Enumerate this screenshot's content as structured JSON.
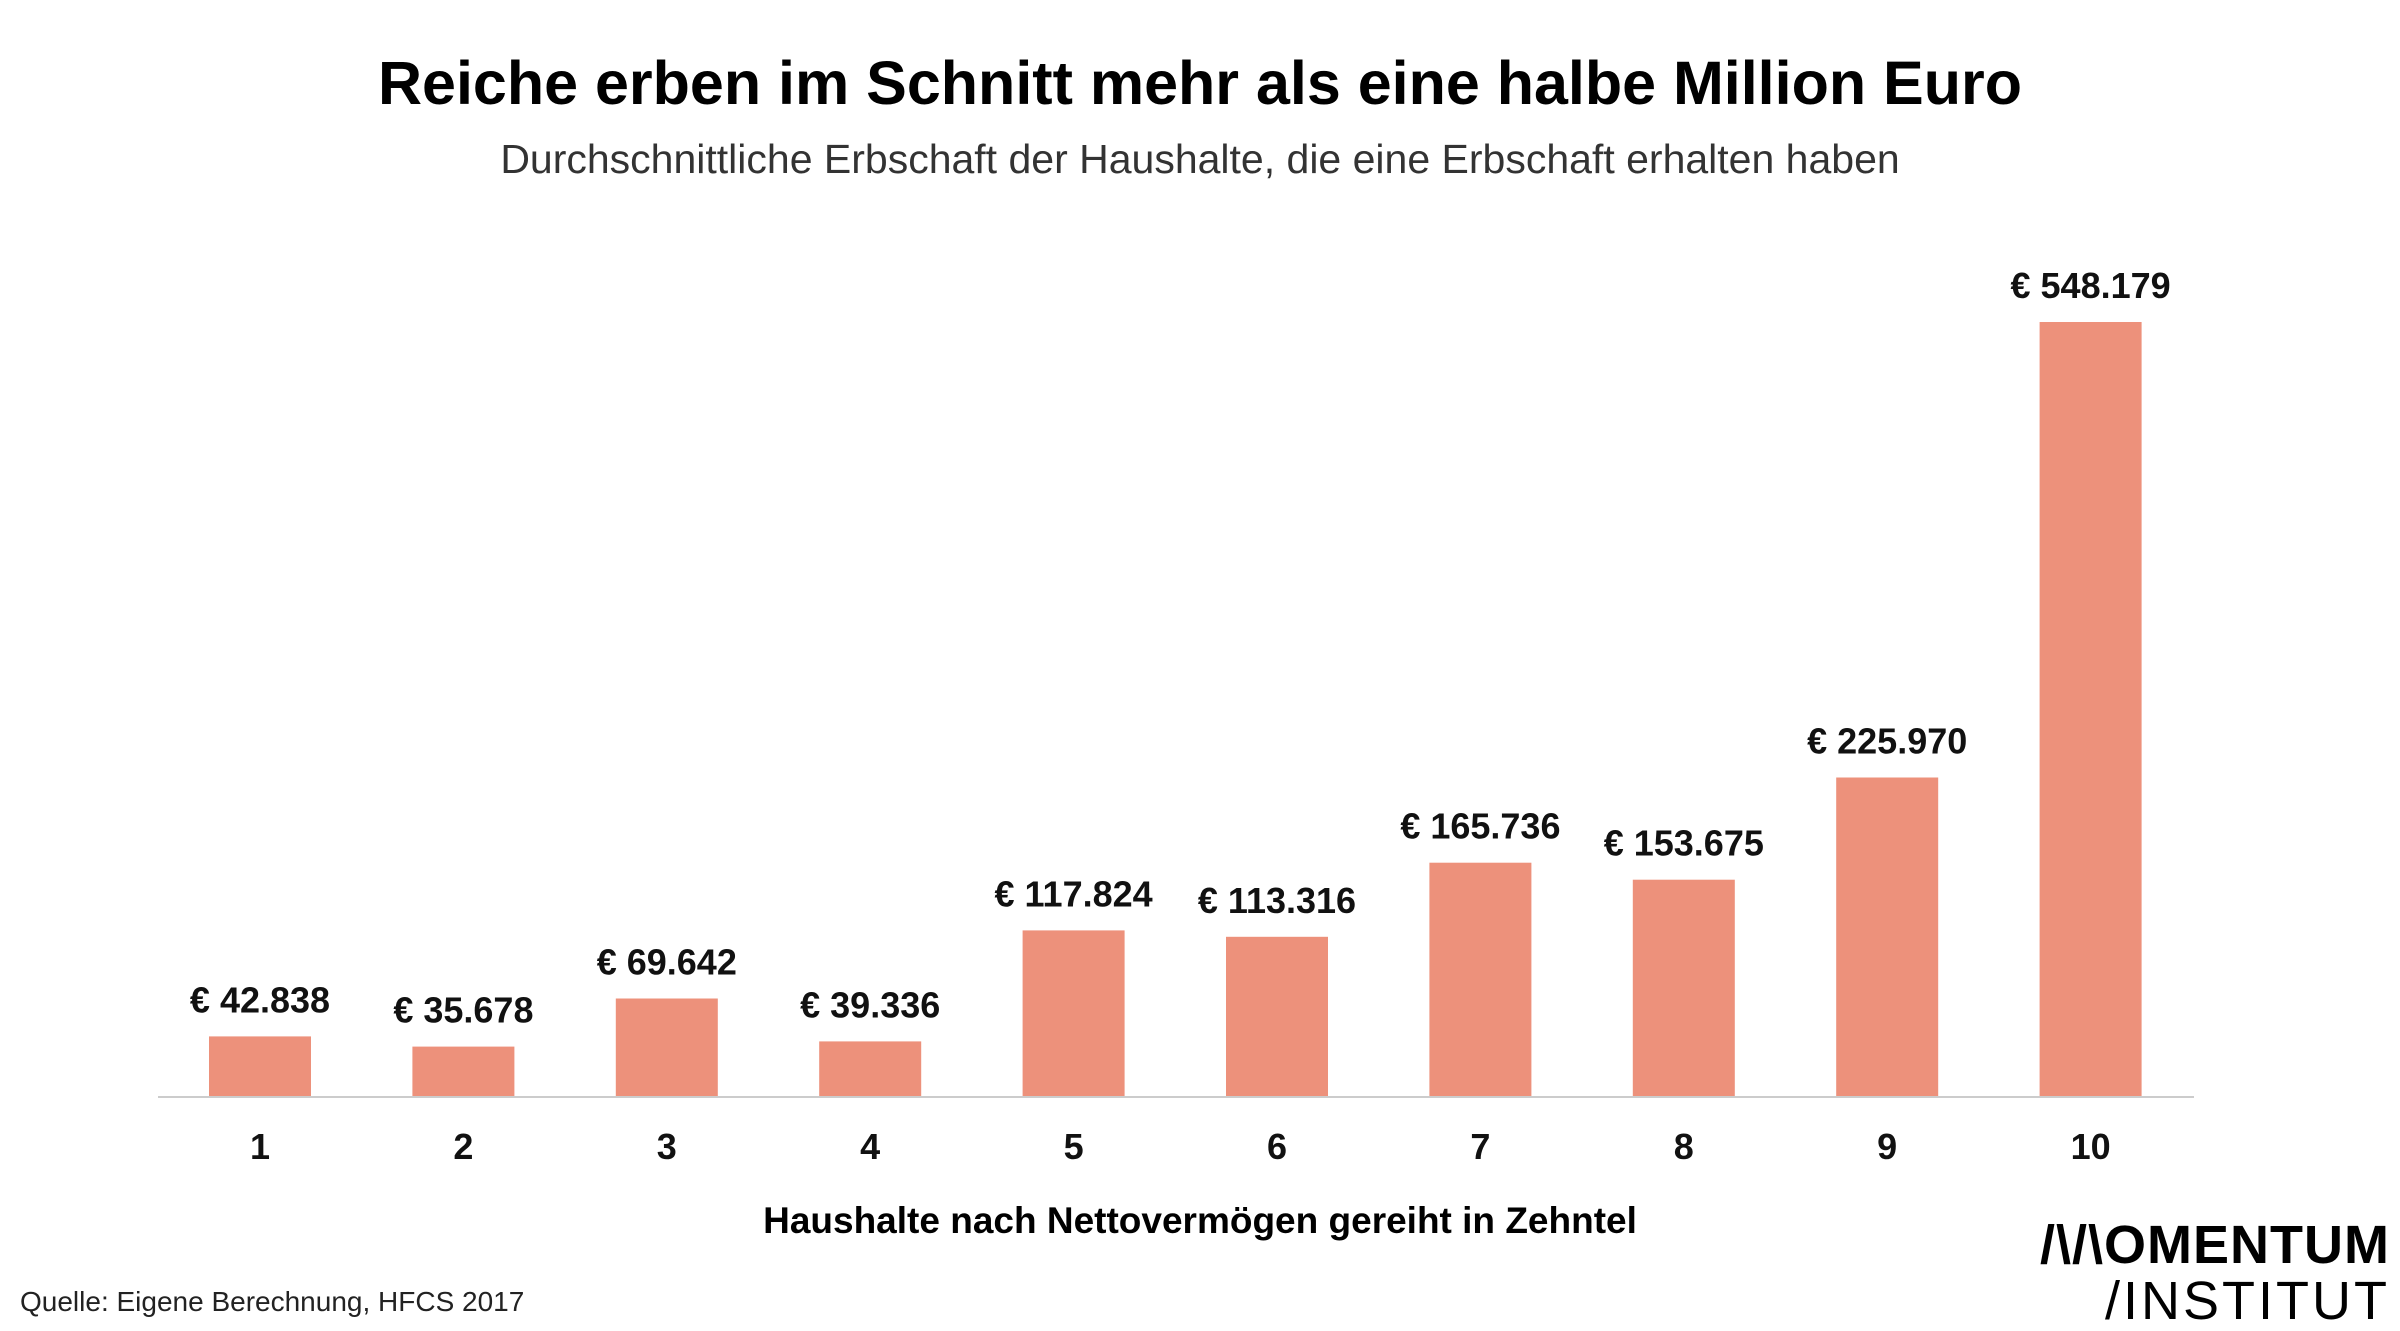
{
  "chart_data": {
    "type": "bar",
    "title": "Reiche erben im Schnitt mehr als eine halbe Million Euro",
    "subtitle": "Durchschnittliche Erbschaft der Haushalte, die eine Erbschaft erhalten haben",
    "xlabel": "Haushalte nach Nettovermögen gereiht in Zehntel",
    "ylabel": "",
    "categories": [
      "1",
      "2",
      "3",
      "4",
      "5",
      "6",
      "7",
      "8",
      "9",
      "10"
    ],
    "values": [
      42838,
      35678,
      69642,
      39336,
      117824,
      113316,
      165736,
      153675,
      225970,
      548179
    ],
    "value_labels": [
      "€ 42.838",
      "€ 35.678",
      "€ 69.642",
      "€ 39.336",
      "€ 117.824",
      "€ 113.316",
      "€ 165.736",
      "€ 153.675",
      "€ 225.970",
      "€ 548.179"
    ],
    "ylim": [
      0,
      548179
    ],
    "bar_color": "#ed917b",
    "grid": false,
    "legend": "none"
  },
  "source": "Quelle: Eigene Berechnung, HFCS 2017",
  "logo": {
    "line1": "/\\/\\OMENTUM",
    "line2": "/INSTITUT"
  }
}
